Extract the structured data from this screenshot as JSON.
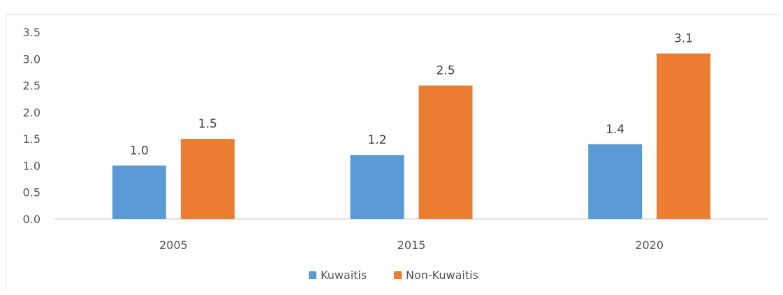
{
  "chart_data": {
    "type": "bar",
    "title": "",
    "xlabel": "",
    "ylabel": "",
    "categories": [
      "2005",
      "2015",
      "2020"
    ],
    "series": [
      {
        "name": "Kuwaitis",
        "values": [
          1.0,
          1.2,
          1.4
        ],
        "labels": [
          "1.0",
          "1.2",
          "1.4"
        ],
        "color": "#5b9bd5"
      },
      {
        "name": "Non-Kuwaitis",
        "values": [
          1.5,
          2.5,
          3.1
        ],
        "labels": [
          "1.5",
          "2.5",
          "3.1"
        ],
        "color": "#ed7d31"
      }
    ],
    "ylim": [
      0,
      3.5
    ],
    "yticks": [
      "0.0",
      "0.5",
      "1.0",
      "1.5",
      "2.0",
      "2.5",
      "3.0",
      "3.5"
    ],
    "grid": false,
    "legend_position": "bottom",
    "axis_color": "#d9d9d9"
  }
}
